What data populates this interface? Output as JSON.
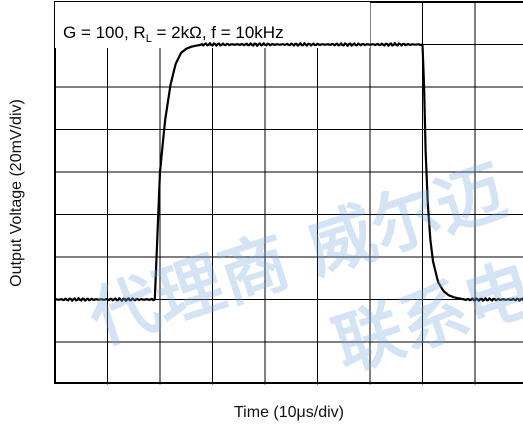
{
  "chart_data": {
    "type": "line",
    "annotation": "G = 100, R_L = 2kΩ, f = 10kHz",
    "annotation_parts": {
      "main": "G = 100, R",
      "sub": "L",
      "rest": " = 2kΩ, f = 10kHz"
    },
    "xlabel": "Time (10μs/div)",
    "ylabel": "Output Voltage (20mV/div)",
    "x_unit": "μs",
    "y_unit": "mV",
    "xlim": [
      0,
      100
    ],
    "ylim": [
      0,
      180
    ],
    "x_divisions": 10,
    "y_divisions": 9,
    "grid": true,
    "series": [
      {
        "color": "#000000",
        "x": [
          0,
          18,
          19,
          19.5,
          20,
          21,
          22,
          23,
          24,
          25,
          26,
          28,
          30,
          40,
          50,
          60,
          69.5,
          70,
          70.3,
          70.6,
          71,
          71.5,
          72,
          73,
          74,
          75,
          76,
          78,
          80,
          90,
          100
        ],
        "y": [
          40,
          40,
          40,
          70,
          100,
          125,
          141,
          151,
          156,
          158,
          159,
          160,
          160,
          160,
          160,
          160,
          160,
          160,
          140,
          110,
          85,
          68,
          58,
          48,
          44,
          42,
          41,
          40,
          40,
          40,
          40
        ]
      }
    ]
  },
  "watermark": {
    "line1": "代理商 威尔迈",
    "line2": "联系电"
  }
}
